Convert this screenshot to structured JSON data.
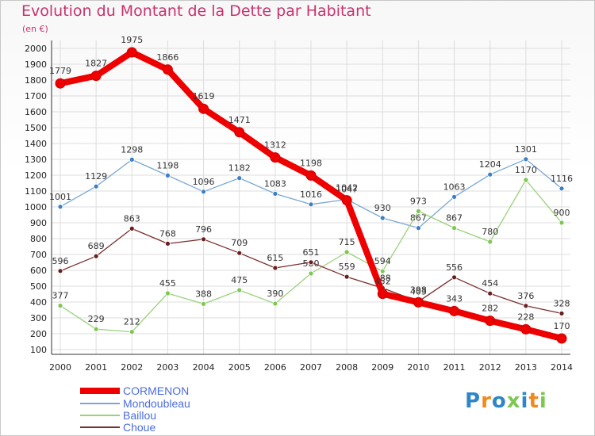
{
  "header": {
    "title": "Evolution du Montant de la Dette par Habitant",
    "unit": "(en €)"
  },
  "colors": {
    "title": "#c8326e",
    "grid": "#dddddd",
    "axis": "#333333",
    "legend_text": "#4a6de0"
  },
  "logo": {
    "text": "Proxiti"
  },
  "chart_data": {
    "type": "line",
    "title": "Evolution du Montant de la Dette par Habitant",
    "subtitle": "(en €)",
    "xlabel": "",
    "ylabel": "",
    "x": [
      "2000",
      "2001",
      "2002",
      "2003",
      "2004",
      "2005",
      "2006",
      "2007",
      "2008",
      "2009",
      "2010",
      "2011",
      "2012",
      "2013",
      "2014"
    ],
    "ylim": [
      100,
      2000
    ],
    "yticks": [
      100,
      200,
      300,
      400,
      500,
      600,
      700,
      800,
      900,
      1000,
      1100,
      1200,
      1300,
      1400,
      1500,
      1600,
      1700,
      1800,
      1900,
      2000
    ],
    "grid": true,
    "legend": "bottom-left",
    "series": [
      {
        "name": "CORMENON",
        "color": "#ee0000",
        "marker": "#ee0000",
        "width": 8,
        "values": [
          1779,
          1827,
          1975,
          1866,
          1619,
          1471,
          1312,
          1198,
          1042,
          452,
          398,
          343,
          282,
          228,
          170
        ]
      },
      {
        "name": "Mondoubleau",
        "color": "#7ba7d4",
        "marker": "#3b7fc4",
        "width": 1.3,
        "values": [
          1001,
          1129,
          1298,
          1198,
          1096,
          1182,
          1083,
          1016,
          1047,
          930,
          867,
          1063,
          1204,
          1301,
          1116
        ]
      },
      {
        "name": "Baillou",
        "color": "#9ad17a",
        "marker": "#7cc850",
        "width": 1.3,
        "values": [
          377,
          229,
          212,
          455,
          388,
          475,
          390,
          580,
          715,
          594,
          973,
          867,
          780,
          1170,
          900
        ]
      },
      {
        "name": "Choue",
        "color": "#7a2c2c",
        "marker": "#6a1e1e",
        "width": 1.3,
        "values": [
          596,
          689,
          863,
          768,
          796,
          709,
          615,
          651,
          559,
          488,
          403,
          556,
          454,
          376,
          328
        ]
      }
    ]
  }
}
